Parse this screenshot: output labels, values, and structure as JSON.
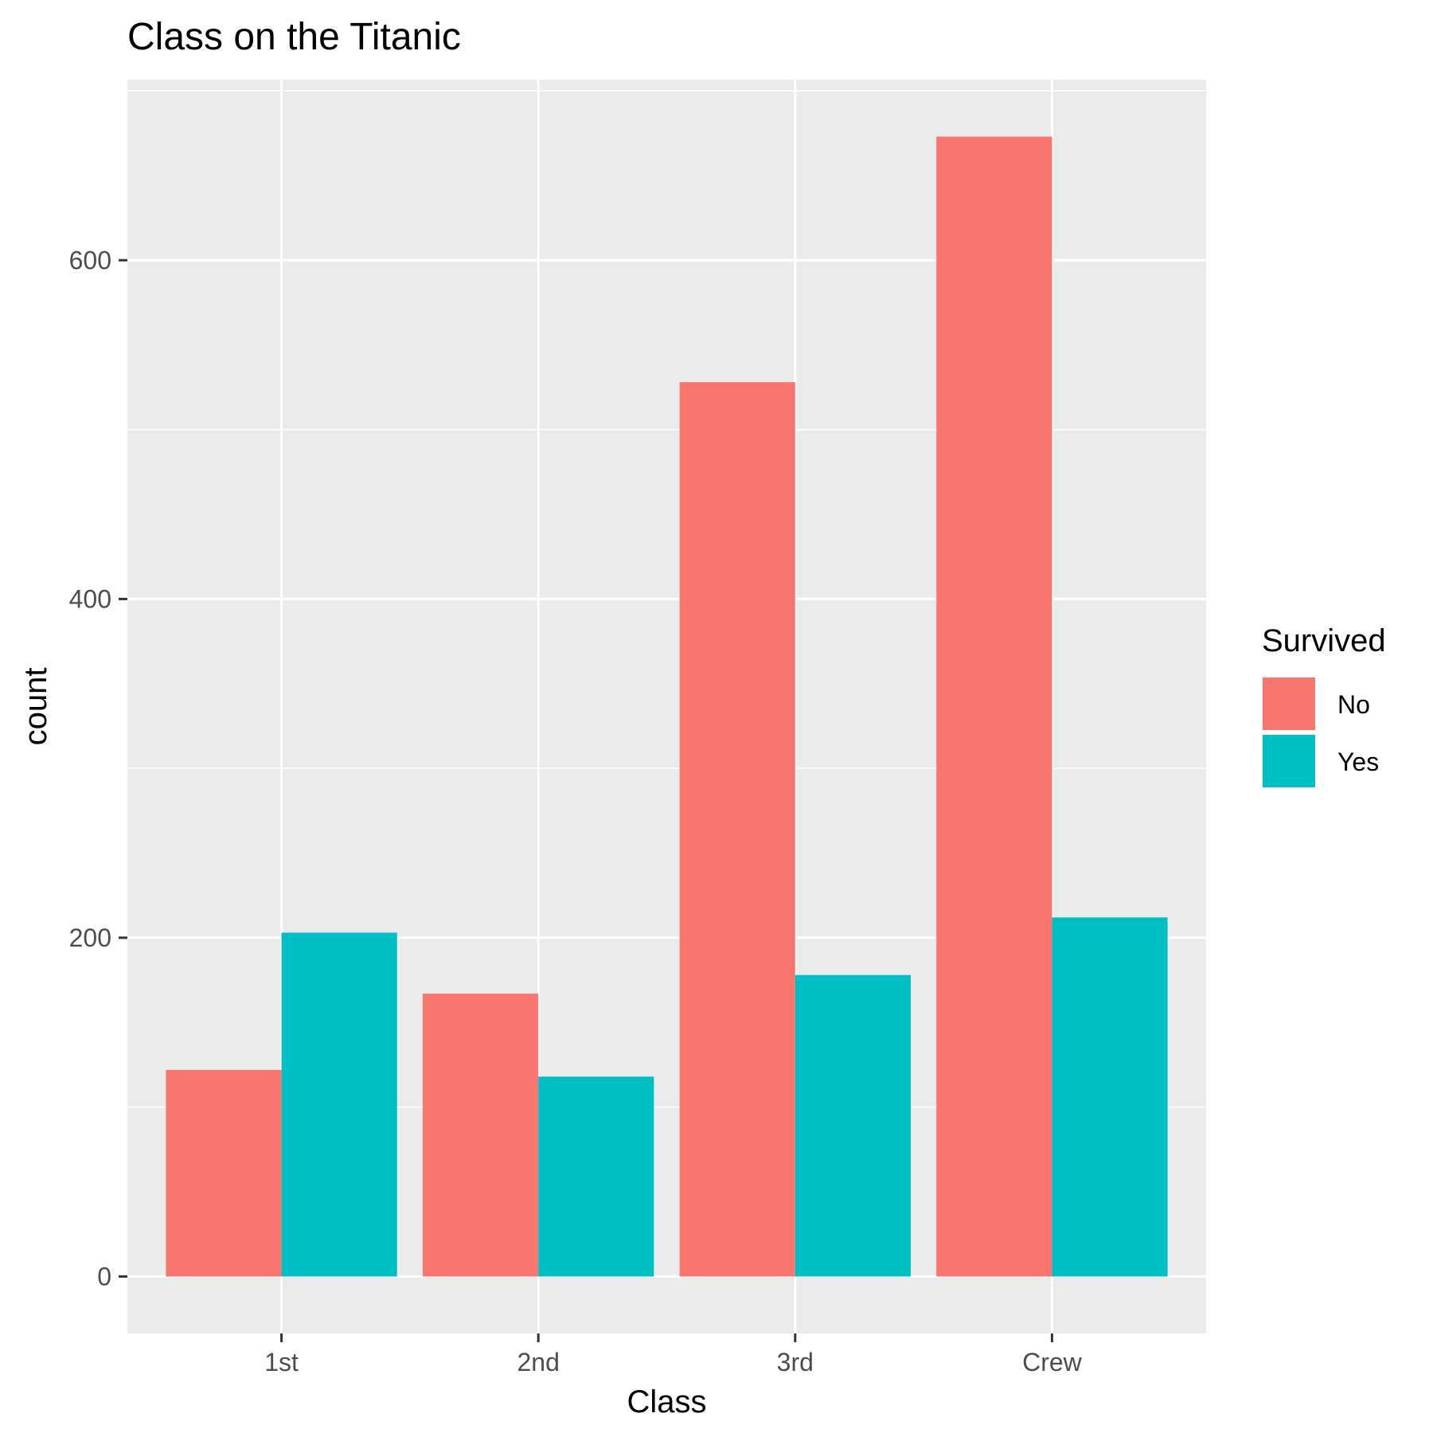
{
  "chart_data": {
    "type": "bar",
    "title": "Class on the Titanic",
    "xlabel": "Class",
    "ylabel": "count",
    "categories": [
      "1st",
      "2nd",
      "3rd",
      "Crew"
    ],
    "series": [
      {
        "name": "No",
        "color": "#F8766D",
        "values": [
          122,
          167,
          528,
          673
        ]
      },
      {
        "name": "Yes",
        "color": "#00BFC4",
        "values": [
          203,
          118,
          178,
          212
        ]
      }
    ],
    "ylim": [
      -33.65,
      706.65
    ],
    "yticks": [
      0,
      200,
      400,
      600
    ],
    "yticks_minor": [
      100,
      300,
      500,
      700
    ],
    "grid": true,
    "panel_color": "#EBEBEB",
    "legend": {
      "title": "Survived",
      "placement": "right"
    }
  }
}
